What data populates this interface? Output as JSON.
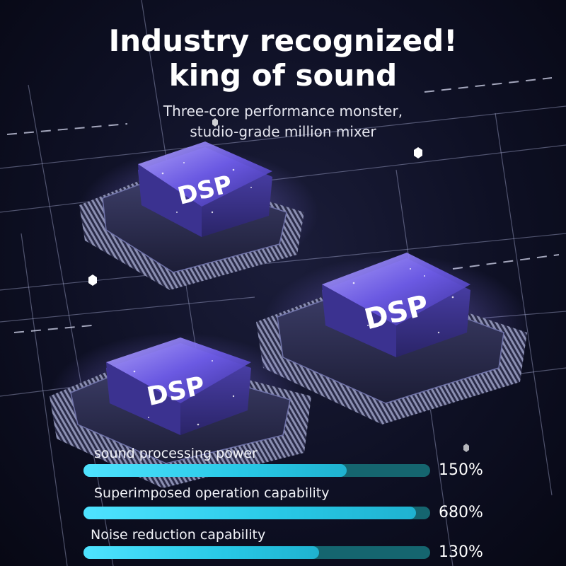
{
  "header": {
    "title_line1": "Industry recognized!",
    "title_line2": "king of sound",
    "subtitle_line1": "Three-core performance monster,",
    "subtitle_line2": "studio-grade million mixer"
  },
  "chips": [
    {
      "label": "DSP"
    },
    {
      "label": "DSP"
    },
    {
      "label": "DSP"
    }
  ],
  "metrics": [
    {
      "label": "sound processing power",
      "value": "150%",
      "fill_fraction": 0.76
    },
    {
      "label": "Superimposed operation capability",
      "value": "680%",
      "fill_fraction": 0.96
    },
    {
      "label": "Noise reduction capability",
      "value": "130%",
      "fill_fraction": 0.68
    }
  ],
  "colors": {
    "background": "#0e1024",
    "bar_track": "#15656f",
    "bar_fill": "#2fd0ee",
    "chip_glow": "#8c7cff"
  }
}
